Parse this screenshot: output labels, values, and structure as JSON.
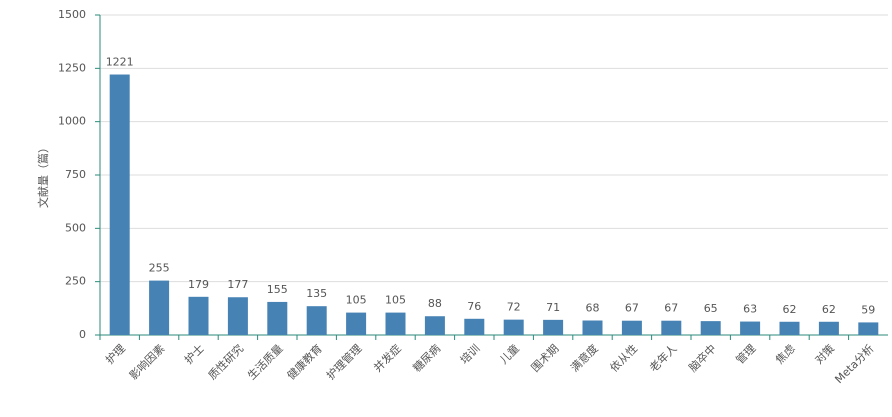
{
  "chart_data": {
    "type": "bar",
    "y_label": "文献量（篇）",
    "categories": [
      "护理",
      "影响因素",
      "护士",
      "质性研究",
      "生活质量",
      "健康教育",
      "护理管理",
      "并发症",
      "糖尿病",
      "培训",
      "儿童",
      "围术期",
      "满意度",
      "依从性",
      "老年人",
      "脑卒中",
      "管理",
      "焦虑",
      "对策",
      "Meta分析"
    ],
    "values": [
      1221,
      255,
      179,
      177,
      155,
      135,
      105,
      105,
      88,
      76,
      72,
      71,
      68,
      67,
      67,
      65,
      63,
      62,
      62,
      59
    ],
    "color": "#4682b4",
    "ylim": [
      0,
      1500
    ],
    "yticks": [
      0,
      250,
      500,
      750,
      1000,
      1250,
      1500
    ],
    "grid": true
  }
}
